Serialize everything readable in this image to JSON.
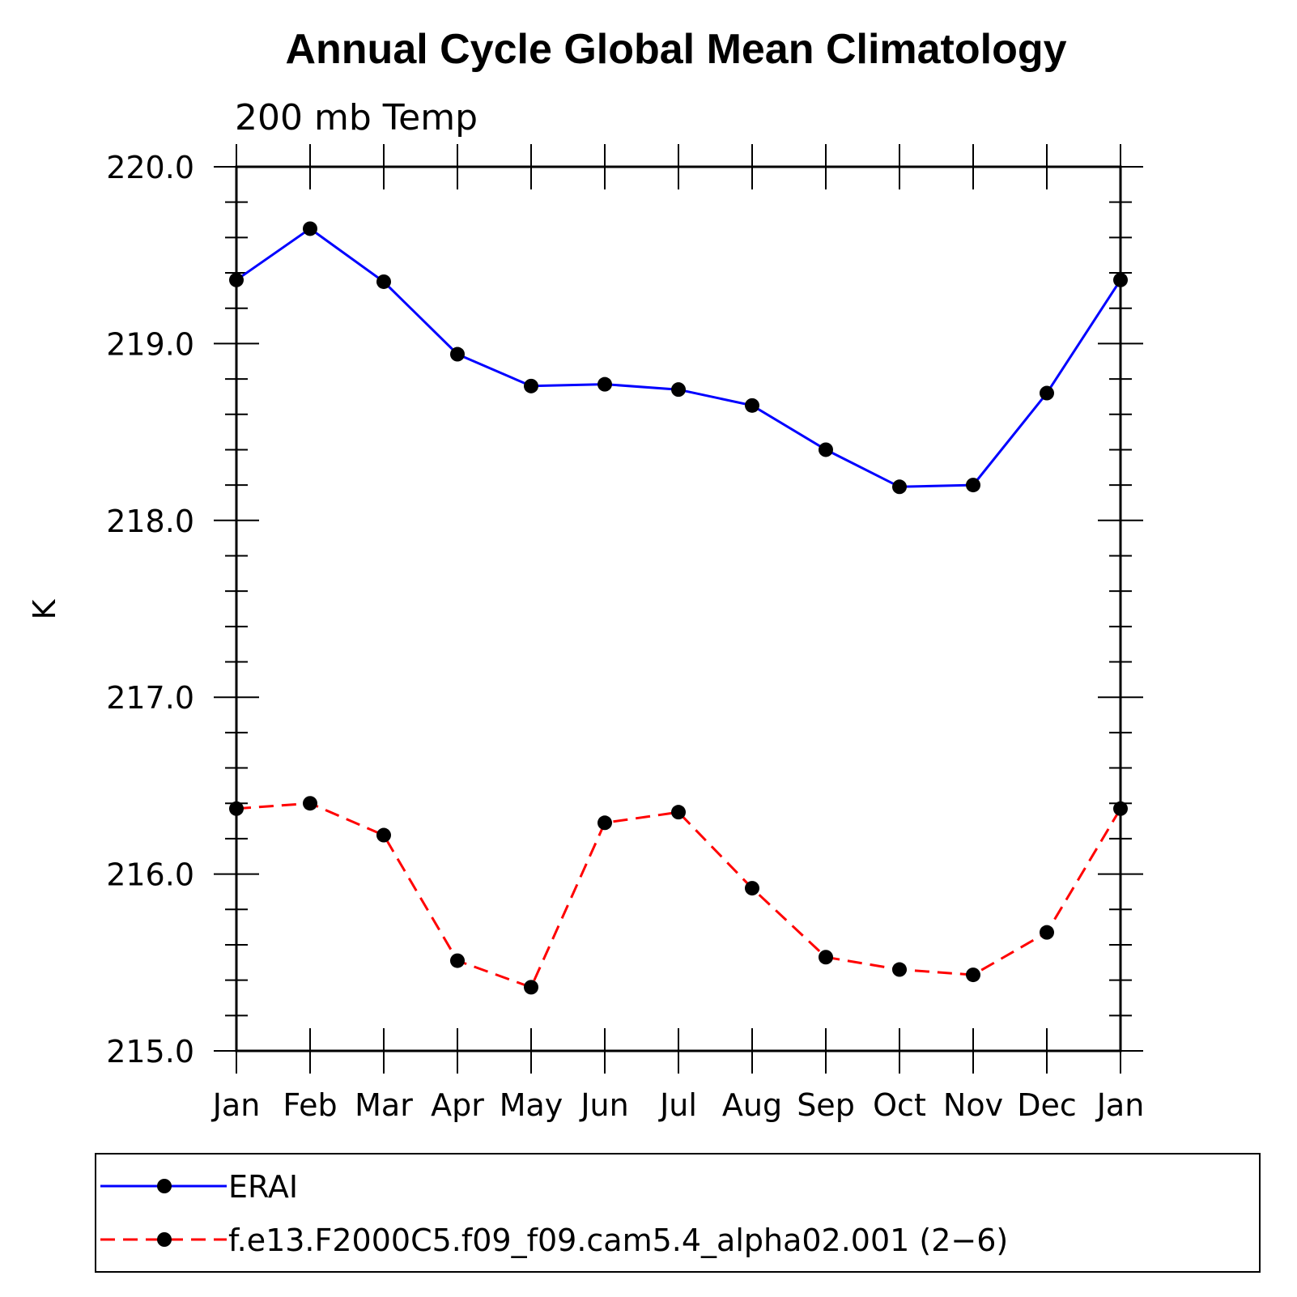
{
  "chart_data": {
    "type": "line",
    "title": "Annual Cycle Global Mean Climatology",
    "subtitle": "200 mb Temp",
    "ylabel": "K",
    "xlabel": "",
    "ylim": [
      215.0,
      220.0
    ],
    "yticks": [
      "215.0",
      "216.0",
      "217.0",
      "218.0",
      "219.0",
      "220.0"
    ],
    "categories": [
      "Jan",
      "Feb",
      "Mar",
      "Apr",
      "May",
      "Jun",
      "Jul",
      "Aug",
      "Sep",
      "Oct",
      "Nov",
      "Dec",
      "Jan"
    ],
    "series": [
      {
        "name": "ERAI",
        "color": "#0000ff",
        "dashed": false,
        "values": [
          219.36,
          219.65,
          219.35,
          218.94,
          218.76,
          218.77,
          218.74,
          218.65,
          218.4,
          218.19,
          218.2,
          218.72,
          219.36
        ]
      },
      {
        "name": "f.e13.F2000C5.f09_f09.cam5.4_alpha02.001 (2−6)",
        "color": "#ff0000",
        "dashed": true,
        "values": [
          216.37,
          216.4,
          216.22,
          215.51,
          215.36,
          216.29,
          216.35,
          215.92,
          215.53,
          215.46,
          215.43,
          215.67,
          216.37
        ]
      }
    ],
    "grid": false,
    "legend_position": "bottom"
  }
}
